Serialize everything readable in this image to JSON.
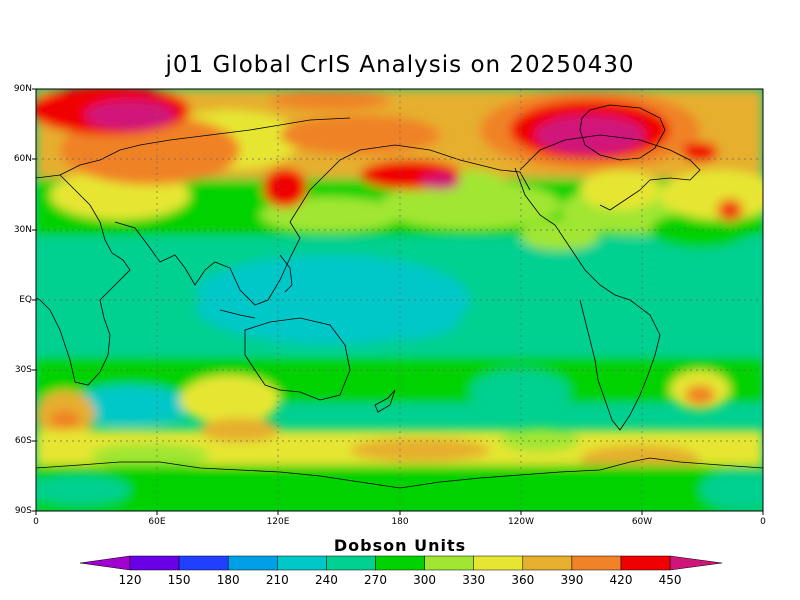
{
  "title": "j01 Global CrIS Analysis on 20250430",
  "lat_labels": [
    "90N",
    "60N",
    "30N",
    "EQ",
    "30S",
    "60S",
    "90S"
  ],
  "lon_labels": [
    "0",
    "60E",
    "120E",
    "180",
    "120W",
    "60W",
    "0"
  ],
  "colorbar": {
    "title": "Dobson Units",
    "labels": [
      "120",
      "150",
      "180",
      "210",
      "240",
      "270",
      "300",
      "330",
      "360",
      "390",
      "420",
      "450"
    ],
    "colors": [
      "#a000d0",
      "#6a00e6",
      "#2040ff",
      "#00a0e8",
      "#00c8c8",
      "#00d090",
      "#00d200",
      "#a0e632",
      "#e6e632",
      "#e6af2d",
      "#f08228",
      "#f00000",
      "#d0147a"
    ]
  },
  "regions": {
    "fill": "#00d090"
  }
}
